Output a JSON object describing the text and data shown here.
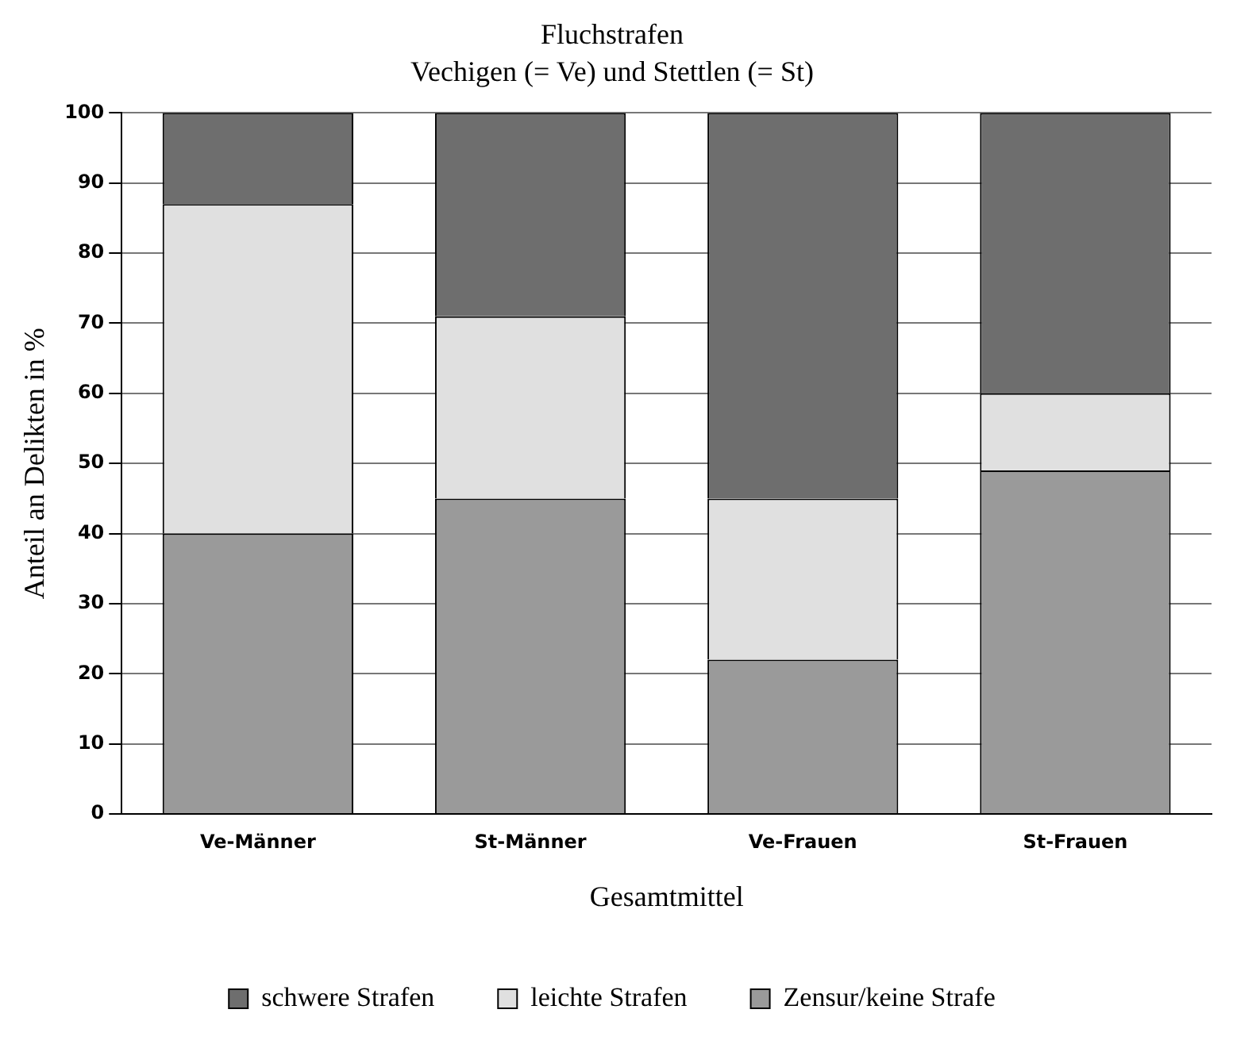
{
  "chart_data": {
    "type": "bar",
    "title": "Fluchstrafen",
    "subtitle": "Vechigen (= Ve) und Stettlen (= St)",
    "xlabel": "Gesamtmittel",
    "ylabel": "Anteil an Delikten in %",
    "categories": [
      "Ve-Männer",
      "St-Männer",
      "Ve-Frauen",
      "St-Frauen"
    ],
    "series": [
      {
        "name": "Zensur/keine Strafe",
        "color": "#9a9a9a",
        "values": [
          40,
          45,
          22,
          49
        ]
      },
      {
        "name": "leichte Strafen",
        "color": "#e0e0e0",
        "values": [
          47,
          26,
          23,
          11
        ]
      },
      {
        "name": "schwere Strafen",
        "color": "#6e6e6e",
        "values": [
          13,
          29,
          55,
          40
        ]
      }
    ],
    "stacked": true,
    "ylim": [
      0,
      100
    ],
    "yticks": [
      0,
      10,
      20,
      30,
      40,
      50,
      60,
      70,
      80,
      90,
      100
    ],
    "grid": "y",
    "legend": "bottom"
  }
}
